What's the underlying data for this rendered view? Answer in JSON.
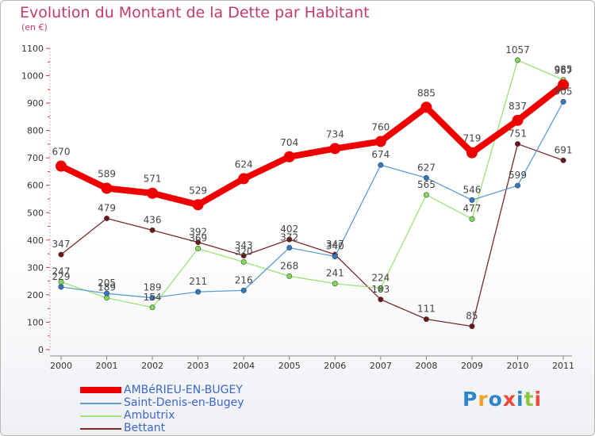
{
  "title": "Evolution du Montant de la Dette par Habitant",
  "subtitle": "(en €)",
  "logo_text": "Proxiti",
  "chart_data": {
    "type": "line",
    "title": "Evolution du Montant de la Dette par Habitant",
    "subtitle": "(en €)",
    "x": [
      "2000",
      "2001",
      "2002",
      "2003",
      "2004",
      "2005",
      "2006",
      "2007",
      "2008",
      "2009",
      "2010",
      "2011"
    ],
    "y_ticks": [
      "0",
      "100",
      "200",
      "300",
      "400",
      "500",
      "600",
      "700",
      "800",
      "900",
      "1000",
      "1100"
    ],
    "ylim": [
      0,
      1100
    ],
    "grid": false,
    "legend_position": "bottom-left",
    "series": [
      {
        "name": "AMBéRIEU-EN-BUGEY",
        "color": "#ee0000",
        "values": [
          670,
          589,
          571,
          529,
          624,
          704,
          734,
          760,
          885,
          719,
          837,
          967
        ],
        "labels": [
          "670",
          "589",
          "571",
          "529",
          "624",
          "704",
          "734",
          "760",
          "885",
          "719",
          "837",
          "967"
        ]
      },
      {
        "name": "Saint-Denis-en-Bugey",
        "color": "#5d9dd9",
        "marker_color": "#2f78c4",
        "values": [
          229,
          205,
          189,
          211,
          216,
          372,
          340,
          674,
          627,
          546,
          599,
          905
        ],
        "labels": [
          "229",
          "205",
          "189",
          "211",
          "216",
          "372",
          "340",
          "674",
          "627",
          "546",
          "599",
          "905"
        ]
      },
      {
        "name": "Ambutrix",
        "color": "#9ee277",
        "marker_color": "#7fdc56",
        "values": [
          247,
          189,
          154,
          369,
          320,
          268,
          241,
          224,
          565,
          477,
          1057,
          985
        ],
        "labels": [
          "247",
          "189",
          "154",
          "369",
          "320",
          "268",
          "241",
          "224",
          "565",
          "477",
          "1057",
          "985"
        ]
      },
      {
        "name": "Bettant",
        "color": "#7a2a2a",
        "marker_color": "#6b1515",
        "values": [
          347,
          479,
          436,
          392,
          343,
          402,
          347,
          183,
          111,
          85,
          751,
          691
        ],
        "labels": [
          "347",
          "479",
          "436",
          "392",
          "343",
          "402",
          "347",
          "183",
          "111",
          "85",
          "751",
          "691"
        ]
      }
    ]
  }
}
